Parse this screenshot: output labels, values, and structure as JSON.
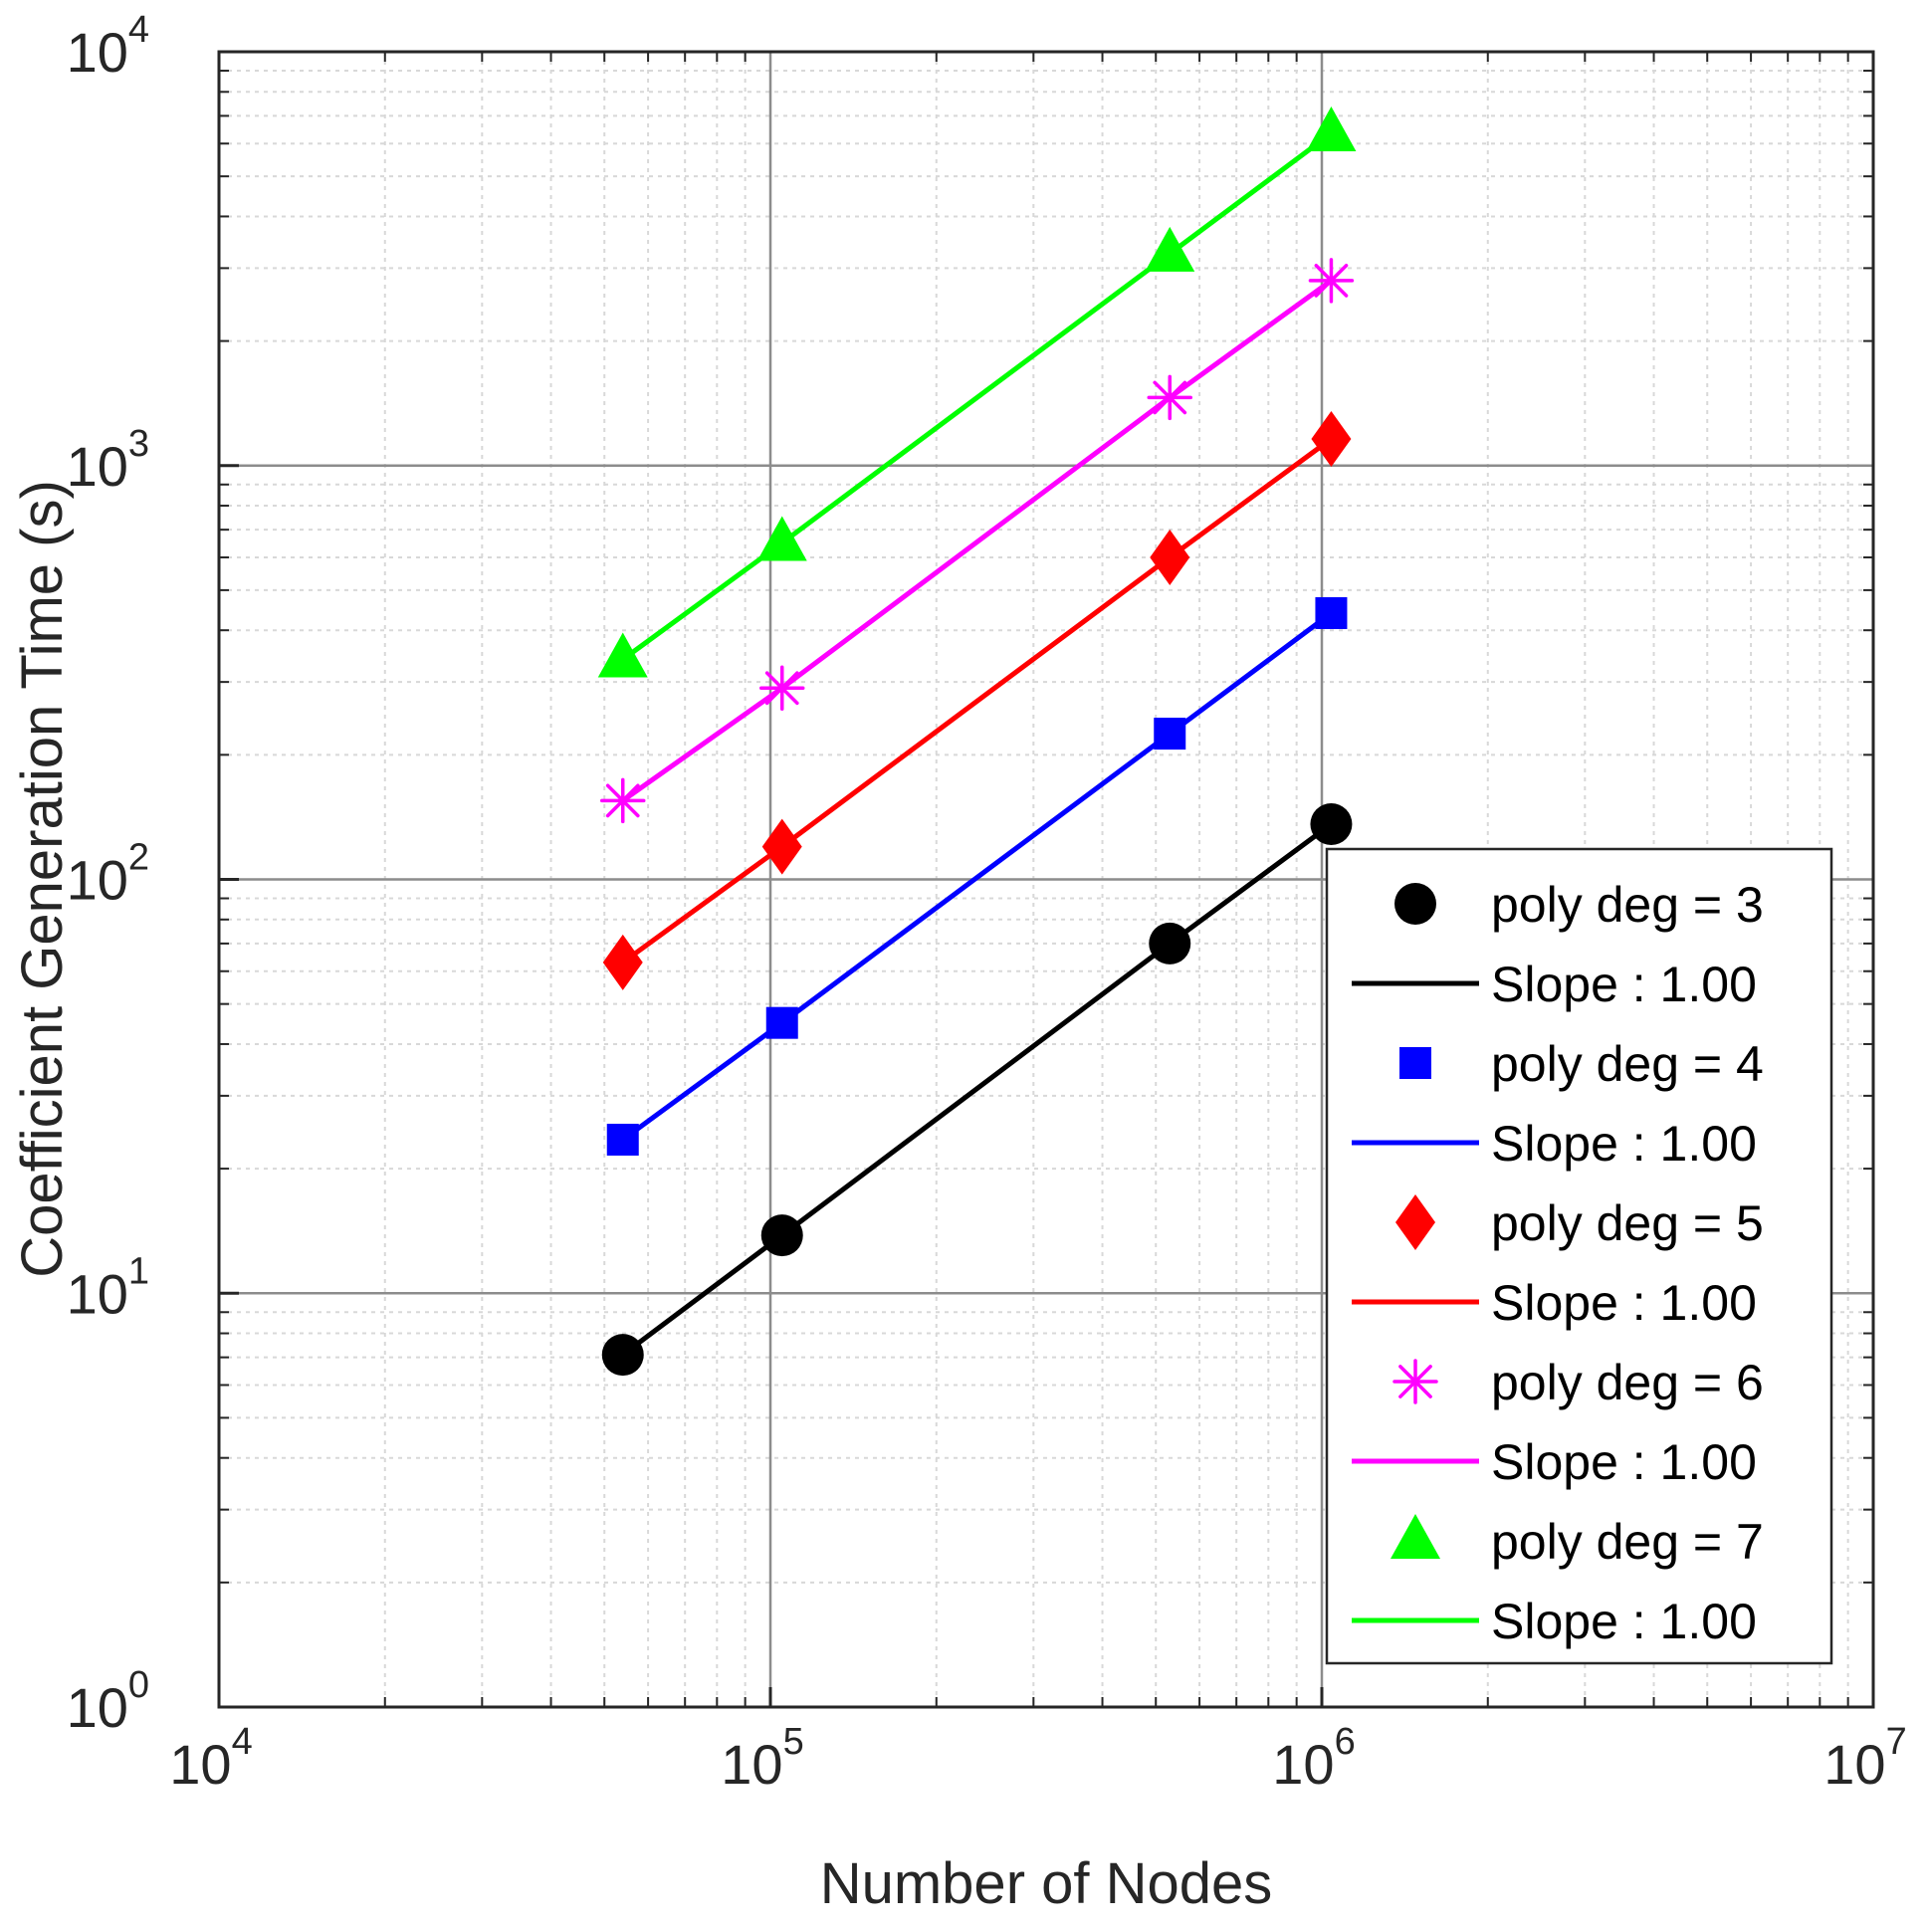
{
  "chart_data": {
    "type": "line",
    "xscale": "log",
    "yscale": "log",
    "xlabel": "Number of Nodes",
    "ylabel": "Coefficient Generation Time (s)",
    "xlim": [
      10000,
      10000000
    ],
    "ylim": [
      1,
      10000
    ],
    "x_ticks": [
      {
        "value": 10000,
        "base": "10",
        "exp": "4"
      },
      {
        "value": 100000,
        "base": "10",
        "exp": "5"
      },
      {
        "value": 1000000,
        "base": "10",
        "exp": "6"
      },
      {
        "value": 10000000,
        "base": "10",
        "exp": "7"
      }
    ],
    "y_ticks": [
      {
        "value": 1,
        "base": "10",
        "exp": "0"
      },
      {
        "value": 10,
        "base": "10",
        "exp": "1"
      },
      {
        "value": 100,
        "base": "10",
        "exp": "2"
      },
      {
        "value": 1000,
        "base": "10",
        "exp": "3"
      },
      {
        "value": 10000,
        "base": "10",
        "exp": "4"
      }
    ],
    "grid": true,
    "legend_position": "bottom-right inside",
    "x": [
      54000,
      105000,
      530000,
      1040000
    ],
    "series": [
      {
        "name": "poly deg = 3",
        "fit_label": "Slope : 1.00",
        "color": "#000000",
        "marker": "circle",
        "values": [
          7.1,
          13.8,
          70,
          136
        ]
      },
      {
        "name": "poly deg = 4",
        "fit_label": "Slope : 1.00",
        "color": "#0000ff",
        "marker": "square",
        "values": [
          23.5,
          45,
          225,
          440
        ]
      },
      {
        "name": "poly deg = 5",
        "fit_label": "Slope : 1.00",
        "color": "#ff0000",
        "marker": "diamond",
        "values": [
          63,
          120,
          600,
          1160
        ]
      },
      {
        "name": "poly deg = 6",
        "fit_label": "Slope : 1.00",
        "color": "#ff00ff",
        "marker": "asterisk",
        "values": [
          155,
          290,
          1460,
          2800
        ]
      },
      {
        "name": "poly deg = 7",
        "fit_label": "Slope : 1.00",
        "color": "#00ff00",
        "marker": "triangle",
        "values": [
          340,
          650,
          3250,
          6350
        ]
      }
    ]
  }
}
